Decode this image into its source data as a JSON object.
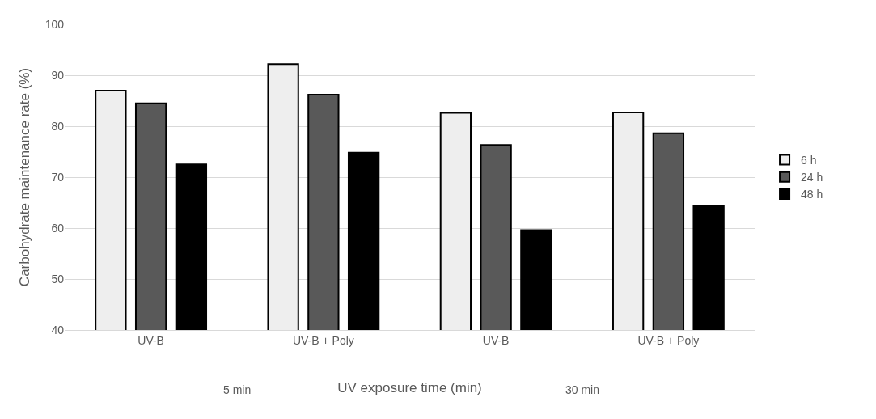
{
  "chart_data": {
    "type": "bar",
    "xlabel": "UV exposure time (min)",
    "ylabel": "Carbohydrate maintenance rate (%)",
    "categories": [
      "UV-B",
      "UV-B + Poly",
      "UV-B",
      "UV-B + Poly"
    ],
    "annotations": [
      "5 min",
      "30 min"
    ],
    "series": [
      {
        "name": "6 h",
        "color": "#eeeeee",
        "values": [
          87.0,
          92.2,
          82.6,
          82.7
        ]
      },
      {
        "name": "24 h",
        "color": "#595959",
        "values": [
          84.5,
          86.2,
          76.3,
          78.6
        ]
      },
      {
        "name": "48 h",
        "color": "#000000",
        "values": [
          72.5,
          74.8,
          59.6,
          64.3
        ]
      }
    ],
    "ylim": [
      40,
      100
    ],
    "yticks": [
      40,
      50,
      60,
      70,
      80,
      90,
      100
    ],
    "grid": "y",
    "legend": "right"
  }
}
